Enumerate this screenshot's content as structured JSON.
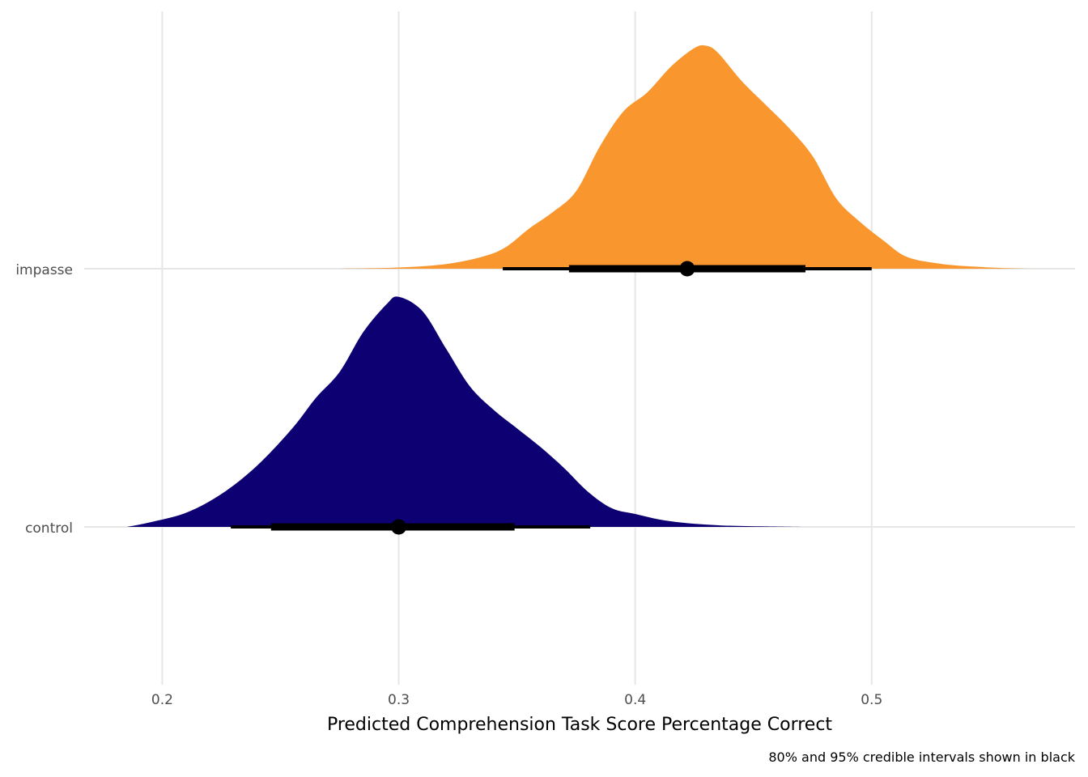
{
  "chart_data": {
    "type": "area",
    "title": "",
    "xlabel": "Predicted Comprehension Task Score Percentage Correct",
    "ylabel": "",
    "caption": "80% and 95% credible intervals shown in black",
    "xlim": [
      0.167,
      0.586
    ],
    "x_ticks": [
      0.2,
      0.3,
      0.4,
      0.5
    ],
    "x_tick_labels": [
      "0.2",
      "0.3",
      "0.4",
      "0.5"
    ],
    "categories": [
      "control",
      "impasse"
    ],
    "grid": true,
    "series": [
      {
        "name": "control",
        "color": "#0d0072",
        "density": [
          [
            0.185,
            0.0
          ],
          [
            0.195,
            0.02
          ],
          [
            0.21,
            0.06
          ],
          [
            0.225,
            0.14
          ],
          [
            0.24,
            0.26
          ],
          [
            0.255,
            0.42
          ],
          [
            0.265,
            0.55
          ],
          [
            0.275,
            0.66
          ],
          [
            0.285,
            0.83
          ],
          [
            0.295,
            0.95
          ],
          [
            0.3,
            0.98
          ],
          [
            0.31,
            0.92
          ],
          [
            0.32,
            0.76
          ],
          [
            0.33,
            0.6
          ],
          [
            0.34,
            0.5
          ],
          [
            0.35,
            0.42
          ],
          [
            0.36,
            0.34
          ],
          [
            0.37,
            0.25
          ],
          [
            0.38,
            0.15
          ],
          [
            0.39,
            0.08
          ],
          [
            0.4,
            0.055
          ],
          [
            0.41,
            0.032
          ],
          [
            0.42,
            0.018
          ],
          [
            0.43,
            0.01
          ],
          [
            0.44,
            0.005
          ],
          [
            0.455,
            0.002
          ],
          [
            0.47,
            0.0
          ]
        ],
        "median": 0.3,
        "interval_80": [
          0.246,
          0.349
        ],
        "interval_95": [
          0.229,
          0.381
        ]
      },
      {
        "name": "impasse",
        "color": "#f9962e",
        "density": [
          [
            0.275,
            0.0
          ],
          [
            0.3,
            0.005
          ],
          [
            0.32,
            0.02
          ],
          [
            0.335,
            0.05
          ],
          [
            0.345,
            0.09
          ],
          [
            0.355,
            0.17
          ],
          [
            0.365,
            0.24
          ],
          [
            0.375,
            0.33
          ],
          [
            0.385,
            0.52
          ],
          [
            0.395,
            0.67
          ],
          [
            0.405,
            0.75
          ],
          [
            0.415,
            0.86
          ],
          [
            0.425,
            0.94
          ],
          [
            0.43,
            0.95
          ],
          [
            0.435,
            0.92
          ],
          [
            0.445,
            0.8
          ],
          [
            0.455,
            0.7
          ],
          [
            0.465,
            0.6
          ],
          [
            0.475,
            0.48
          ],
          [
            0.485,
            0.3
          ],
          [
            0.495,
            0.2
          ],
          [
            0.505,
            0.12
          ],
          [
            0.515,
            0.05
          ],
          [
            0.53,
            0.02
          ],
          [
            0.545,
            0.008
          ],
          [
            0.555,
            0.003
          ],
          [
            0.567,
            0.0
          ]
        ],
        "median": 0.422,
        "interval_80": [
          0.372,
          0.472
        ],
        "interval_95": [
          0.344,
          0.5
        ]
      }
    ]
  }
}
